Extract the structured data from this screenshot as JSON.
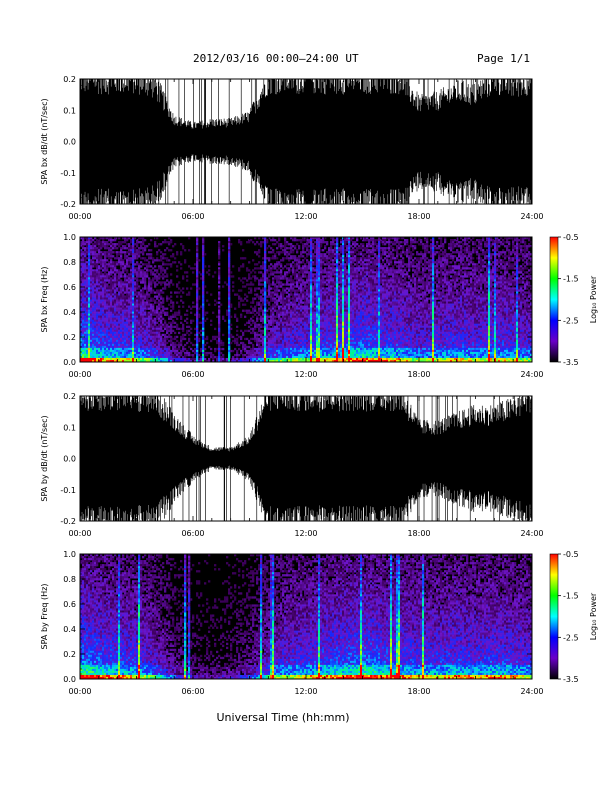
{
  "header": {
    "title": "2012/03/16  00:00–24:00 UT",
    "page": "Page 1/1"
  },
  "x_axis": {
    "label": "Universal Time (hh:mm)",
    "ticks": [
      "00:00",
      "06:00",
      "12:00",
      "18:00",
      "24:00"
    ]
  },
  "colorbar": {
    "label": "Log₁₀ Power",
    "ticks": [
      "-0.5",
      "-1.5",
      "-2.5",
      "-3.5"
    ],
    "stops": [
      "#ff0000",
      "#ffff00",
      "#00ff00",
      "#00ffff",
      "#0000ff",
      "#6a00c8",
      "#000000"
    ]
  },
  "chart_data": [
    {
      "type": "area",
      "name": "bx_dbdt",
      "ylabel": "SPA bx dB/dt (nT/sec)",
      "xlim": [
        0,
        24
      ],
      "ylim": [
        -0.2,
        0.2
      ],
      "yticks": [
        "0.2",
        "0.1",
        "0.0",
        "-0.1",
        "-0.2"
      ],
      "x_hours": [
        0,
        1,
        2,
        3,
        4,
        5,
        6,
        7,
        8,
        9,
        10,
        11,
        12,
        13,
        14,
        15,
        16,
        17,
        18,
        19,
        20,
        21,
        22,
        23,
        24
      ],
      "amplitude": [
        0.2,
        0.2,
        0.2,
        0.2,
        0.18,
        0.07,
        0.05,
        0.06,
        0.06,
        0.08,
        0.2,
        0.2,
        0.2,
        0.2,
        0.2,
        0.2,
        0.2,
        0.2,
        0.12,
        0.13,
        0.16,
        0.15,
        0.2,
        0.18,
        0.2
      ],
      "fill_color": "#000000"
    },
    {
      "type": "heatmap",
      "name": "bx_spectrogram",
      "ylabel": "SPA bx Freq (Hz)",
      "xlim": [
        0,
        24
      ],
      "ylim": [
        0,
        1.0
      ],
      "yticks": [
        "1.0",
        "0.8",
        "0.6",
        "0.4",
        "0.2",
        "0.0"
      ],
      "zlim": [
        -3.5,
        -0.5
      ],
      "zlabel": "Log₁₀ Power",
      "x_hours": [
        0,
        1,
        2,
        3,
        4,
        5,
        6,
        7,
        8,
        9,
        10,
        11,
        12,
        13,
        14,
        15,
        16,
        17,
        18,
        19,
        20,
        21,
        22,
        23,
        24
      ],
      "activity": [
        1.0,
        0.85,
        0.8,
        0.75,
        0.6,
        0.35,
        0.25,
        0.2,
        0.25,
        0.35,
        0.6,
        0.7,
        0.75,
        0.8,
        0.85,
        0.9,
        0.85,
        0.8,
        0.7,
        0.75,
        0.8,
        0.75,
        0.8,
        0.75,
        0.7
      ]
    },
    {
      "type": "area",
      "name": "by_dbdt",
      "ylabel": "SPA by dB/dt (nT/sec)",
      "xlim": [
        0,
        24
      ],
      "ylim": [
        -0.2,
        0.2
      ],
      "yticks": [
        "0.2",
        "0.1",
        "0.0",
        "-0.1",
        "-0.2"
      ],
      "x_hours": [
        0,
        1,
        2,
        3,
        4,
        5,
        6,
        7,
        8,
        9,
        10,
        11,
        12,
        13,
        14,
        15,
        16,
        17,
        18,
        19,
        20,
        21,
        22,
        23,
        24
      ],
      "amplitude": [
        0.2,
        0.2,
        0.2,
        0.2,
        0.19,
        0.12,
        0.06,
        0.03,
        0.03,
        0.06,
        0.2,
        0.2,
        0.2,
        0.2,
        0.2,
        0.2,
        0.2,
        0.2,
        0.1,
        0.1,
        0.12,
        0.14,
        0.14,
        0.16,
        0.2
      ],
      "fill_color": "#000000"
    },
    {
      "type": "heatmap",
      "name": "by_spectrogram",
      "ylabel": "SPA by Freq (Hz)",
      "xlim": [
        0,
        24
      ],
      "ylim": [
        0,
        1.0
      ],
      "yticks": [
        "1.0",
        "0.8",
        "0.6",
        "0.4",
        "0.2",
        "0.0"
      ],
      "zlim": [
        -3.5,
        -0.5
      ],
      "zlabel": "Log₁₀ Power",
      "x_hours": [
        0,
        1,
        2,
        3,
        4,
        5,
        6,
        7,
        8,
        9,
        10,
        11,
        12,
        13,
        14,
        15,
        16,
        17,
        18,
        19,
        20,
        21,
        22,
        23,
        24
      ],
      "activity": [
        1.0,
        0.9,
        0.85,
        0.8,
        0.65,
        0.4,
        0.3,
        0.25,
        0.3,
        0.4,
        0.65,
        0.75,
        0.8,
        0.85,
        0.9,
        0.95,
        0.9,
        0.85,
        0.8,
        0.8,
        0.85,
        0.8,
        0.85,
        0.8,
        0.75
      ]
    }
  ]
}
